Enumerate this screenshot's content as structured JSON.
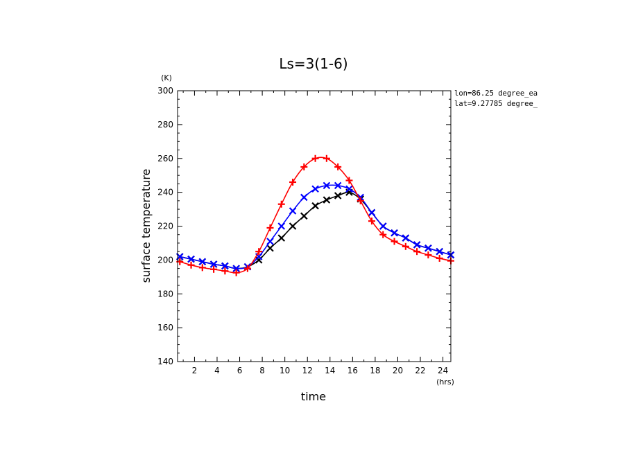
{
  "chart_data": {
    "type": "line",
    "title": "Ls=3(1-6)",
    "xlabel": "time",
    "ylabel": "surface temperature",
    "x_unit": "(hrs)",
    "y_unit": "(K)",
    "xlim": [
      0.5,
      24.7
    ],
    "ylim": [
      140,
      300
    ],
    "xticks": [
      2,
      4,
      6,
      8,
      10,
      12,
      14,
      16,
      18,
      20,
      22,
      24
    ],
    "yticks": [
      140,
      160,
      180,
      200,
      220,
      240,
      260,
      280,
      300
    ],
    "annotations": [
      "lon=86.25 degree_ea",
      "lat=9.27785 degree_"
    ],
    "x": [
      0.7,
      1.7,
      2.7,
      3.7,
      4.7,
      5.7,
      6.7,
      7.7,
      8.7,
      9.7,
      10.7,
      11.7,
      12.7,
      13.7,
      14.7,
      15.7,
      16.7,
      17.7,
      18.7,
      19.7,
      20.7,
      21.7,
      22.7,
      23.7,
      24.7
    ],
    "series": [
      {
        "color": "#000000",
        "marker": "x",
        "values": [
          202,
          200.5,
          199,
          197.5,
          196.5,
          195,
          196,
          200,
          207,
          213,
          220,
          226,
          232,
          235.5,
          238,
          240,
          236,
          228,
          220,
          216,
          213,
          209,
          207,
          205,
          203
        ]
      },
      {
        "color": "#0000ff",
        "marker": "x",
        "values": [
          202,
          200.5,
          199,
          197.5,
          196.5,
          195,
          196,
          202,
          211,
          220,
          229,
          237,
          242,
          244,
          244,
          242,
          237,
          228,
          220,
          216,
          213,
          209,
          207,
          205,
          203
        ]
      },
      {
        "color": "#ff0000",
        "marker": "+",
        "values": [
          199,
          197,
          195.5,
          194.5,
          193.5,
          192.5,
          195,
          205,
          219,
          233,
          246,
          255,
          260,
          260,
          255,
          247,
          235,
          223,
          215,
          211,
          208,
          205,
          203,
          201,
          199.5
        ]
      }
    ]
  }
}
